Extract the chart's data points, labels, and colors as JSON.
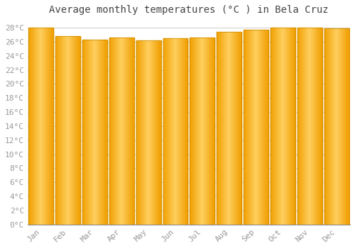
{
  "title": "Average monthly temperatures (°C ) in Bela Cruz",
  "months": [
    "Jan",
    "Feb",
    "Mar",
    "Apr",
    "May",
    "Jun",
    "Jul",
    "Aug",
    "Sep",
    "Oct",
    "Nov",
    "Dec"
  ],
  "values": [
    28.0,
    26.8,
    26.3,
    26.6,
    26.2,
    26.5,
    26.6,
    27.4,
    27.7,
    28.0,
    28.0,
    27.9
  ],
  "bar_color_center": "#FFD060",
  "bar_color_edge": "#F0A000",
  "bar_edge_color": "#CC8800",
  "background_color": "#FFFFFF",
  "grid_color": "#CCCCCC",
  "text_color": "#999999",
  "ylim": [
    0,
    29
  ],
  "ytick_max": 28,
  "ytick_step": 2,
  "title_fontsize": 10,
  "tick_fontsize": 8,
  "font_family": "monospace"
}
